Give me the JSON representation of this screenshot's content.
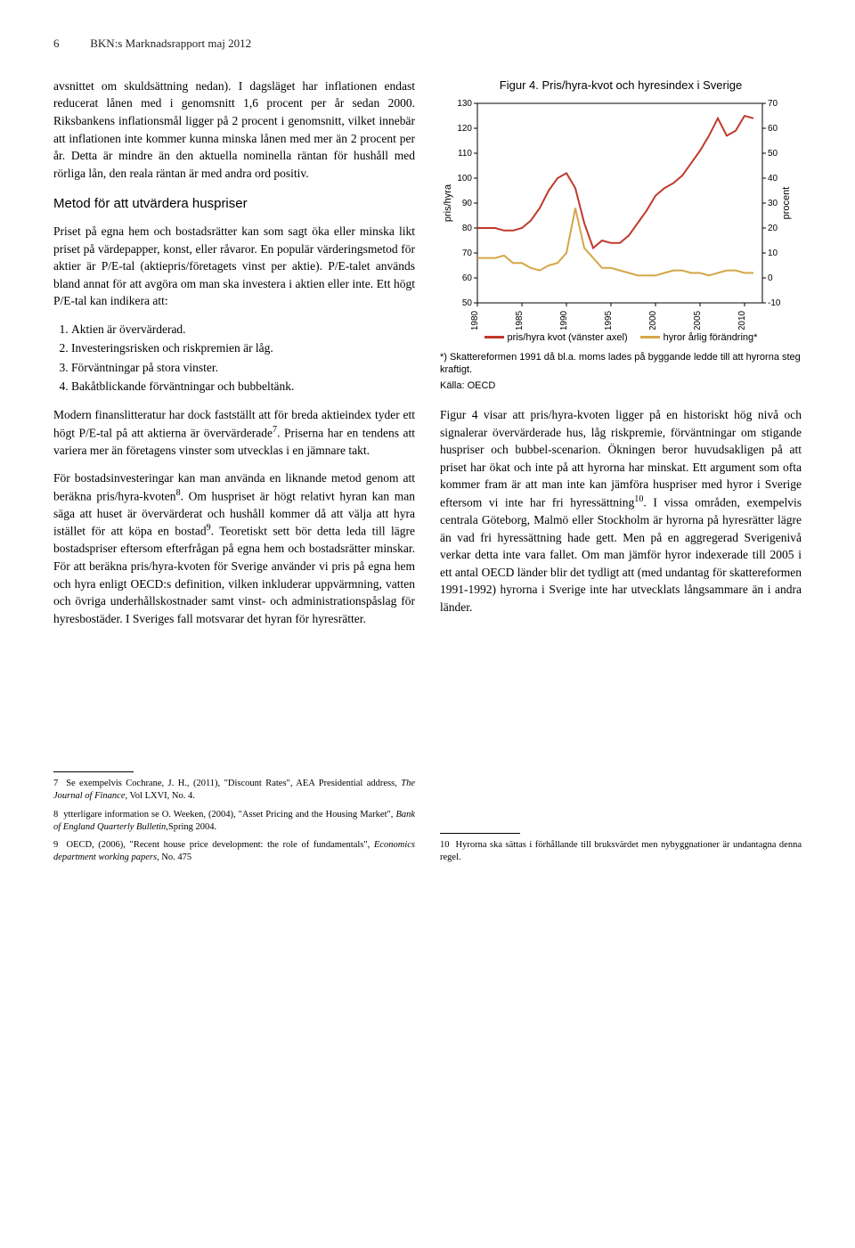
{
  "header": {
    "page_number": "6",
    "report_title": "BKN:s Marknadsrapport maj 2012"
  },
  "left_column": {
    "para1": "avsnittet om skuldsättning nedan). I dagsläget har inflationen endast reducerat lånen med i genomsnitt 1,6 procent per år sedan 2000. Riksbankens inflationsmål ligger på 2 procent i genomsnitt, vilket innebär att inflationen inte kommer kunna minska lånen med mer än 2 procent per år. Detta är mindre än den aktuella nominella räntan för hushåll med rörliga lån, den reala räntan är med andra ord positiv.",
    "heading1": "Metod för att utvärdera huspriser",
    "para2_a": "Priset på egna hem och bostadsrätter kan som sagt öka eller minska likt priset på värdepapper, konst, eller råvaror. En populär värderingsmetod för aktier är P/E-tal (aktiepris/företagets vinst per aktie). P/E-talet används bland annat för att avgöra om man ska investera i aktien eller inte. Ett högt P/E-tal kan indikera att:",
    "list": [
      "Aktien är övervärderad.",
      "Investeringsrisken och riskpremien är låg.",
      "Förväntningar på stora vinster.",
      "Bakåtblickande förväntningar och bubbeltänk."
    ],
    "para3_a": "Modern finanslitteratur har dock fastställt att för breda aktieindex tyder ett högt P/E-tal på att aktierna är övervärderade",
    "para3_b": ". Priserna har en tendens att variera mer än företagens vinster som utvecklas i en jämnare takt.",
    "para4_a": "För bostadsinvesteringar kan man använda en liknande metod genom att beräkna pris/hyra-kvoten",
    "para4_b": ". Om huspriset är högt relativt hyran kan man säga att huset är övervärderat och hushåll kommer då att välja att hyra istället för att köpa en bostad",
    "para4_c": ". Teoretiskt sett bör detta leda till lägre bostadspriser eftersom efterfrågan på egna hem och bostadsrätter minskar. För att beräkna pris/hyra-kvoten för Sverige använder vi pris på egna hem och hyra enligt OECD:s definition, vilken inkluderar uppvärmning, vatten och övriga underhållskostnader samt vinst- och administrationspåslag för hyresbostäder. I Sveriges fall motsvarar det hyran för hyresrätter."
  },
  "chart": {
    "title": "Figur 4. Pris/hyra-kvot och hyresindex i Sverige",
    "type": "line",
    "background_color": "#ffffff",
    "plot_border_color": "#000000",
    "y_left": {
      "label": "pris/hyra",
      "min": 50,
      "max": 130,
      "step": 10,
      "ticks": [
        50,
        60,
        70,
        80,
        90,
        100,
        110,
        120,
        130
      ]
    },
    "y_right": {
      "label": "procent",
      "min": -10,
      "max": 70,
      "step": 10,
      "ticks": [
        -10,
        0,
        10,
        20,
        30,
        40,
        50,
        60,
        70
      ]
    },
    "x": {
      "min": 1980,
      "max": 2012,
      "ticks": [
        1980,
        1985,
        1990,
        1995,
        2000,
        2005,
        2010
      ]
    },
    "series": [
      {
        "name": "pris/hyra kvot (vänster axel)",
        "color": "#c0392b",
        "width": 2,
        "axis": "left",
        "points": [
          [
            1980,
            80
          ],
          [
            1981,
            80
          ],
          [
            1982,
            80
          ],
          [
            1983,
            79
          ],
          [
            1984,
            79
          ],
          [
            1985,
            80
          ],
          [
            1986,
            83
          ],
          [
            1987,
            88
          ],
          [
            1988,
            95
          ],
          [
            1989,
            100
          ],
          [
            1990,
            102
          ],
          [
            1991,
            96
          ],
          [
            1992,
            82
          ],
          [
            1993,
            72
          ],
          [
            1994,
            75
          ],
          [
            1995,
            74
          ],
          [
            1996,
            74
          ],
          [
            1997,
            77
          ],
          [
            1998,
            82
          ],
          [
            1999,
            87
          ],
          [
            2000,
            93
          ],
          [
            2001,
            96
          ],
          [
            2002,
            98
          ],
          [
            2003,
            101
          ],
          [
            2004,
            106
          ],
          [
            2005,
            111
          ],
          [
            2006,
            117
          ],
          [
            2007,
            124
          ],
          [
            2008,
            117
          ],
          [
            2009,
            119
          ],
          [
            2010,
            125
          ],
          [
            2011,
            124
          ]
        ]
      },
      {
        "name": "hyror årlig förändring*",
        "color": "#d4a747",
        "width": 2,
        "axis": "right",
        "points": [
          [
            1980,
            8
          ],
          [
            1981,
            8
          ],
          [
            1982,
            8
          ],
          [
            1983,
            9
          ],
          [
            1984,
            6
          ],
          [
            1985,
            6
          ],
          [
            1986,
            4
          ],
          [
            1987,
            3
          ],
          [
            1988,
            5
          ],
          [
            1989,
            6
          ],
          [
            1990,
            10
          ],
          [
            1991,
            28
          ],
          [
            1992,
            12
          ],
          [
            1993,
            8
          ],
          [
            1994,
            4
          ],
          [
            1995,
            4
          ],
          [
            1996,
            3
          ],
          [
            1997,
            2
          ],
          [
            1998,
            1
          ],
          [
            1999,
            1
          ],
          [
            2000,
            1
          ],
          [
            2001,
            2
          ],
          [
            2002,
            3
          ],
          [
            2003,
            3
          ],
          [
            2004,
            2
          ],
          [
            2005,
            2
          ],
          [
            2006,
            1
          ],
          [
            2007,
            2
          ],
          [
            2008,
            3
          ],
          [
            2009,
            3
          ],
          [
            2010,
            2
          ],
          [
            2011,
            2
          ]
        ]
      }
    ],
    "legend": [
      {
        "label": "pris/hyra kvot (vänster axel)",
        "color": "#c0392b"
      },
      {
        "label": "hyror årlig förändring*",
        "color": "#d4a747"
      }
    ],
    "note": "*) Skattereformen 1991 då bl.a. moms lades på byggande ledde till att hyrorna steg kraftigt.",
    "source": "Källa: OECD"
  },
  "right_column": {
    "para1_a": "Figur 4 visar att pris/hyra-kvoten ligger på en historiskt hög nivå och signalerar övervärderade hus, låg riskpremie, förväntningar om stigande huspriser och bubbel-scenarion. Ökningen beror huvudsakligen på att priset har ökat och inte på att hyrorna har minskat. Ett argument som ofta kommer fram är att man inte kan jämföra huspriser med hyror i Sverige eftersom vi inte har fri hyressättning",
    "para1_b": ". I vissa områden, exempelvis centrala Göteborg, Malmö eller Stockholm är hyrorna på hyresrätter lägre än vad fri hyressättning hade gett. Men på en aggregerad Sverigenivå verkar detta inte vara fallet. Om man jämför hyror indexerade till 2005 i ett antal OECD länder blir det tydligt att (med undantag för skattereformen 1991-1992) hyrorna i Sverige inte har utvecklats långsammare än i andra länder."
  },
  "footnotes": {
    "left": [
      {
        "n": "7",
        "text_a": "Se exempelvis Cochrane, J. H., (2011), \"Discount Rates\", AEA Presidential address, ",
        "text_i": "The Journal of Finance",
        "text_b": ", Vol LXVI, No. 4."
      },
      {
        "n": "8",
        "text_a": "ytterligare information se O. Weeken, (2004), \"Asset Pricing and the Housing Market\", ",
        "text_i": "Bank of England Quarterly Bulletin",
        "text_b": ",Spring 2004."
      },
      {
        "n": "9",
        "text_a": "OECD, (2006), \"Recent house price development: the role of fundamentals\", ",
        "text_i": "Economics department working papers",
        "text_b": ", No. 475"
      }
    ],
    "right": [
      {
        "n": "10",
        "text_a": "Hyrorna ska sättas i förhållande till bruksvärdet men nybyggnationer är undantagna denna regel.",
        "text_i": "",
        "text_b": ""
      }
    ]
  }
}
